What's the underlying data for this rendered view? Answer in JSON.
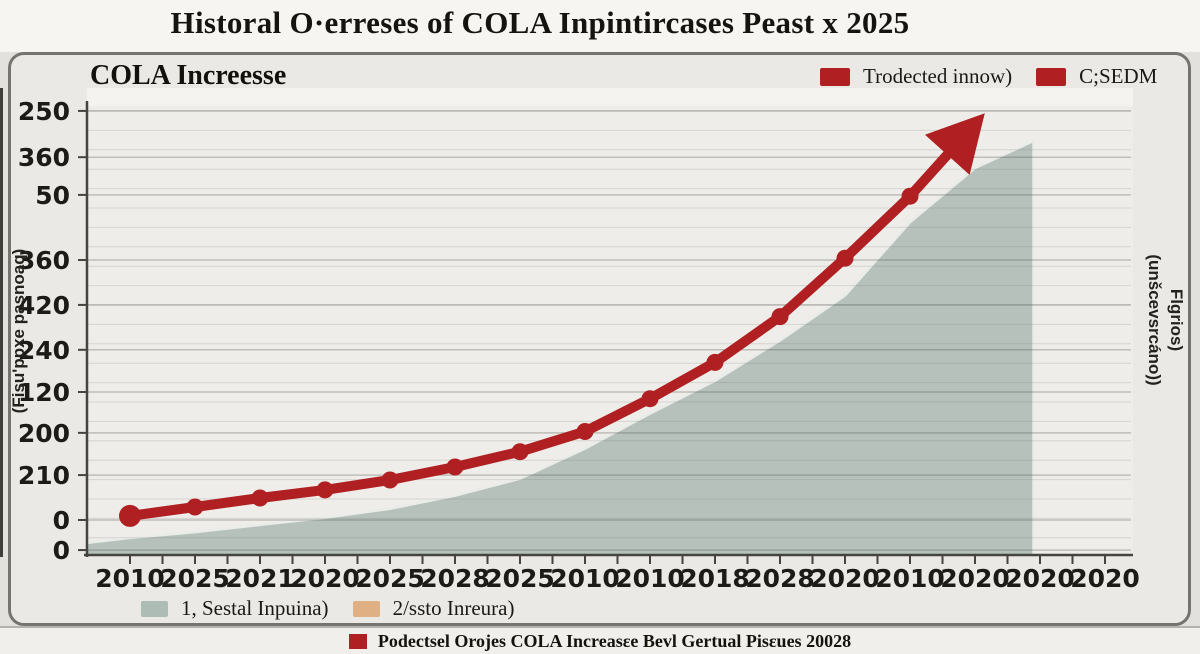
{
  "page": {
    "main_title": "Historal O·erreses of COLA Inpintircases Peast x 2025",
    "footer_caption": "Podectsel Orojes COLA Increasεe Bevl Gertual Pisεues 20028"
  },
  "colors": {
    "accent_red": "#b01f22",
    "area_green": "#b7c1bc",
    "legend_area_swatch": "#aebcb6",
    "legend_tan": "#dfb084",
    "panel_bg": "#eae9e5",
    "title_band_bg": "#f6f5f2"
  },
  "panel": {
    "title": "COLA Increesse",
    "legend_top": [
      {
        "label": "Trodected innow)",
        "color": "#b01f22"
      },
      {
        "label": "C;SEDM",
        "color": "#b01f22"
      }
    ],
    "legend_bottom": [
      {
        "label": "1, Sestal Inpuina)",
        "color": "#aebcb6"
      },
      {
        "label": "2/ssto Inreura)",
        "color": "#dfb084"
      }
    ]
  },
  "chart_data": {
    "type": "line",
    "title": "COLA Increesse",
    "x_tick_labels": [
      "2010",
      "2025",
      "2021",
      "2020",
      "2025",
      "2028",
      "2025",
      "2010",
      "2010",
      "2018",
      "2028",
      "2020",
      "2010",
      "2020",
      "2020",
      "2020"
    ],
    "y_tick_labels": [
      {
        "label": "250",
        "pos": 98.9
      },
      {
        "label": "360",
        "pos": 88.6
      },
      {
        "label": "50",
        "pos": 80.2
      },
      {
        "label": "360",
        "pos": 65.7
      },
      {
        "label": "420",
        "pos": 55.7
      },
      {
        "label": "240",
        "pos": 45.7
      },
      {
        "label": "120",
        "pos": 36.3
      },
      {
        "label": "200",
        "pos": 27.2
      },
      {
        "label": "210",
        "pos": 17.8
      },
      {
        "label": "0",
        "pos": 7.8
      },
      {
        "label": "0",
        "pos": 1.1
      }
    ],
    "y_axis_label_left": "(Fisu'ppxe pasnoaq)",
    "y_axis_label_right_lines": [
      "Flgrios)",
      "(unšcevsrcáno))"
    ],
    "units": "percent-of-axis-height",
    "series": [
      {
        "name": "Trodected innow)",
        "type": "line",
        "color": "#b01f22",
        "arrow": true,
        "points": [
          [
            0,
            8.7
          ],
          [
            1,
            10.7
          ],
          [
            2,
            12.7
          ],
          [
            3,
            14.5
          ],
          [
            4,
            16.7
          ],
          [
            5,
            19.6
          ],
          [
            6,
            23.0
          ],
          [
            7,
            27.5
          ],
          [
            8,
            34.8
          ],
          [
            9,
            42.9
          ],
          [
            10,
            53.1
          ],
          [
            11,
            66.1
          ],
          [
            12,
            79.9
          ],
          [
            13.15,
            98.4
          ]
        ]
      },
      {
        "name": "1, Sestal Inpuina)",
        "type": "area",
        "color": "#b7c1bc",
        "points": [
          [
            -0.66,
            2.7
          ],
          [
            0,
            3.8
          ],
          [
            1,
            5.1
          ],
          [
            2,
            6.7
          ],
          [
            3,
            8.3
          ],
          [
            4,
            10.3
          ],
          [
            5,
            13.2
          ],
          [
            6,
            17.0
          ],
          [
            7,
            23.7
          ],
          [
            8,
            31.5
          ],
          [
            9,
            38.8
          ],
          [
            10,
            47.8
          ],
          [
            11,
            57.8
          ],
          [
            12,
            74.1
          ],
          [
            13,
            86.2
          ],
          [
            13.9,
            92.2
          ]
        ]
      }
    ]
  }
}
